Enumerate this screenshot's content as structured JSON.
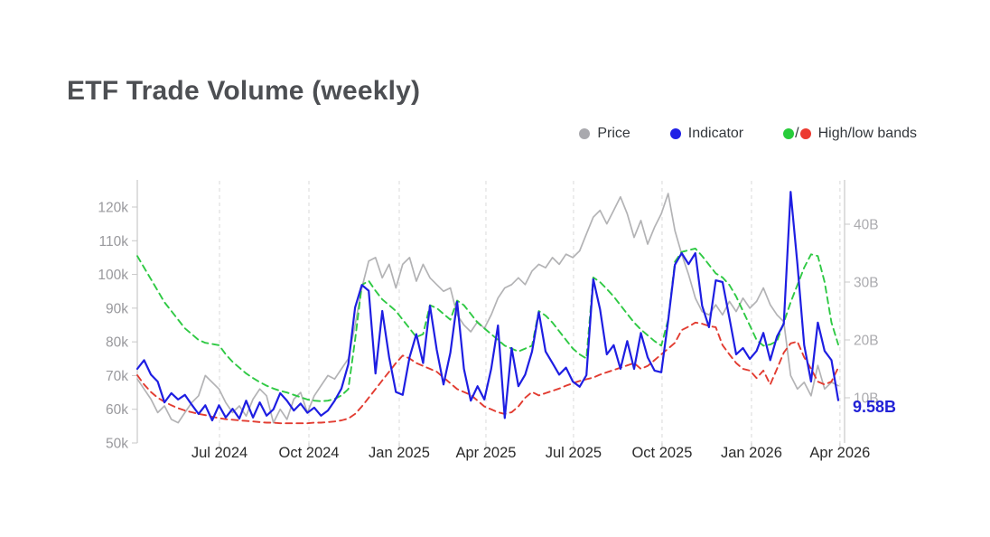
{
  "page": {
    "title": "ETF Trade Volume (weekly)"
  },
  "legend": {
    "items": [
      {
        "label": "Price",
        "color": "#a9a9ae"
      },
      {
        "label": "Indicator",
        "color": "#2020e6"
      },
      {
        "label": "High/low bands",
        "color": "#27cc3a",
        "color2": "#ec3a30",
        "separator": "/"
      }
    ]
  },
  "last_value": {
    "text": "9.58B",
    "color": "#2222d6"
  },
  "chart_data": {
    "type": "line",
    "title": "ETF Trade Volume (weekly)",
    "grid": "vertical-dashed",
    "legend_position": "top-right",
    "x_axis": {
      "tick_labels": [
        "Jul 2024",
        "Oct 2024",
        "Jan 2025",
        "Apr 2025",
        "Jul 2025",
        "Oct 2025",
        "Jan 2026",
        "Apr 2026"
      ],
      "tick_week_index": [
        12.08,
        25.22,
        38.49,
        51.23,
        64.1,
        77.11,
        90.25,
        103.25
      ],
      "weeks_total": 104
    },
    "left_axis": {
      "unit": "k",
      "min": 50,
      "max": 120,
      "tick_values": [
        50,
        60,
        70,
        80,
        90,
        100,
        110,
        120
      ],
      "tick_labels": [
        "50k",
        "60k",
        "70k",
        "80k",
        "90k",
        "100k",
        "110k",
        "120k"
      ]
    },
    "right_axis": {
      "unit": "B",
      "min": 10,
      "max": 40,
      "tick_values": [
        10,
        20,
        30,
        40
      ],
      "tick_labels": [
        "10B",
        "20B",
        "30B",
        "40B"
      ]
    },
    "last_value_label": "9.58B",
    "series": [
      {
        "name": "Price",
        "axis": "left",
        "color": "#b3b3b5",
        "width": 1.7,
        "dashed": false,
        "values": [
          69,
          66,
          63,
          59,
          61,
          57,
          56,
          59,
          62,
          64,
          70,
          68,
          66,
          62,
          59,
          61,
          58,
          63,
          66,
          64,
          56,
          60,
          57,
          63,
          65,
          59,
          64,
          67,
          70,
          69,
          72,
          75,
          85,
          96,
          104,
          105,
          99,
          103,
          96,
          103,
          105,
          98,
          103,
          99,
          97,
          95,
          96,
          88,
          85,
          83,
          86,
          84,
          88,
          93,
          96,
          97,
          99,
          97,
          101,
          103,
          102,
          105,
          103,
          106,
          105,
          107,
          112,
          117,
          119,
          115,
          119,
          123,
          118,
          111,
          116,
          109,
          114,
          118,
          124,
          113,
          106,
          100,
          93,
          89,
          88,
          91,
          88,
          92,
          89,
          93,
          90,
          92,
          96,
          91,
          88,
          86,
          70,
          66,
          68,
          64,
          73,
          66,
          68,
          67
        ]
      },
      {
        "name": "High band",
        "axis": "right",
        "color": "#2fc944",
        "width": 1.9,
        "dashed": true,
        "values": [
          34.5,
          32.5,
          30.5,
          28.5,
          26.5,
          25,
          23.5,
          22,
          21,
          20,
          19.5,
          19.3,
          19.1,
          17.5,
          16.2,
          15.2,
          14.2,
          13.4,
          12.7,
          12.1,
          11.6,
          11.2,
          10.9,
          10.5,
          10.1,
          9.7,
          9.5,
          9.4,
          9.5,
          9.8,
          10.4,
          11.5,
          20,
          29.5,
          30.2,
          28.5,
          27,
          26,
          25,
          23.5,
          22,
          20.5,
          21,
          26,
          25.5,
          24.5,
          23.5,
          26.8,
          26,
          24.5,
          23,
          22,
          21,
          20,
          19,
          18.5,
          18,
          18.5,
          19,
          25,
          24.2,
          23,
          21.5,
          20,
          18.5,
          17.5,
          16.8,
          30.8,
          30,
          28.8,
          27.5,
          26,
          24.5,
          23,
          21.8,
          20.8,
          19.8,
          19,
          23.5,
          33.5,
          35.2,
          35.5,
          35.8,
          34.5,
          33,
          31.5,
          30.8,
          29.5,
          27.5,
          25,
          22.5,
          20,
          19,
          19.2,
          19.8,
          23,
          26.5,
          29.5,
          32.5,
          34.8,
          34.5,
          30,
          23,
          19.2
        ]
      },
      {
        "name": "Low band",
        "axis": "right",
        "color": "#e23c31",
        "width": 1.9,
        "dashed": true,
        "values": [
          13.9,
          12.3,
          11,
          10,
          9.3,
          8.7,
          8.2,
          7.8,
          7.5,
          7.2,
          7,
          6.7,
          6.5,
          6.3,
          6.2,
          6.1,
          6,
          5.9,
          5.8,
          5.7,
          5.7,
          5.6,
          5.6,
          5.6,
          5.6,
          5.6,
          5.7,
          5.7,
          5.8,
          5.9,
          6.1,
          6.4,
          7.2,
          8.5,
          10,
          11.5,
          13,
          14.5,
          16,
          17.3,
          16.8,
          16,
          15.5,
          15,
          14.5,
          13.5,
          12.5,
          11.5,
          11,
          10.5,
          9.5,
          8.5,
          8,
          7.5,
          7.2,
          7.5,
          8.5,
          10,
          11,
          10.4,
          10.8,
          11.2,
          11.6,
          12.1,
          12.5,
          12.9,
          13.2,
          13.5,
          14,
          14.4,
          14.8,
          15.2,
          15.6,
          16,
          15,
          15.5,
          16.5,
          17.5,
          18.5,
          19.5,
          21.7,
          22.3,
          23,
          22.8,
          22.4,
          22.2,
          19.1,
          17.5,
          16,
          15,
          14.7,
          13.4,
          14.7,
          12.3,
          15,
          17.8,
          19.4,
          19.7,
          17,
          15,
          12.8,
          12.3,
          12.8,
          15.2
        ]
      },
      {
        "name": "Indicator",
        "axis": "right",
        "color": "#1e1ee2",
        "width": 2.2,
        "dashed": false,
        "values": [
          15,
          16.5,
          14,
          12.8,
          9.2,
          10.8,
          9.7,
          10.5,
          8.8,
          7.2,
          8.7,
          6.1,
          8.7,
          6.6,
          8.1,
          6.4,
          9.5,
          6.6,
          9.2,
          6.9,
          8,
          10.8,
          9.5,
          7.8,
          9,
          7.4,
          8.3,
          6.9,
          7.8,
          9.5,
          11.6,
          15.8,
          25.6,
          29.5,
          28.5,
          14.2,
          25,
          17,
          11,
          10.5,
          17,
          21,
          16,
          25.9,
          18.3,
          12.3,
          17.8,
          26.6,
          15,
          9.5,
          12,
          9.7,
          15,
          22.5,
          6.5,
          18.6,
          12,
          14,
          18,
          24.8,
          18,
          16,
          14,
          15.2,
          12.8,
          11.9,
          13.9,
          30.5,
          25.3,
          17.5,
          19.1,
          15,
          19.8,
          15,
          21.2,
          17,
          14.7,
          14.4,
          23.3,
          33,
          35,
          33.1,
          35,
          25.9,
          22.2,
          30.3,
          30,
          23.8,
          17.5,
          18.6,
          16.7,
          18.1,
          21.2,
          16.5,
          20.6,
          22.8,
          45.6,
          33.1,
          19.1,
          12.8,
          23,
          18.1,
          16.5,
          9.58
        ]
      }
    ]
  }
}
